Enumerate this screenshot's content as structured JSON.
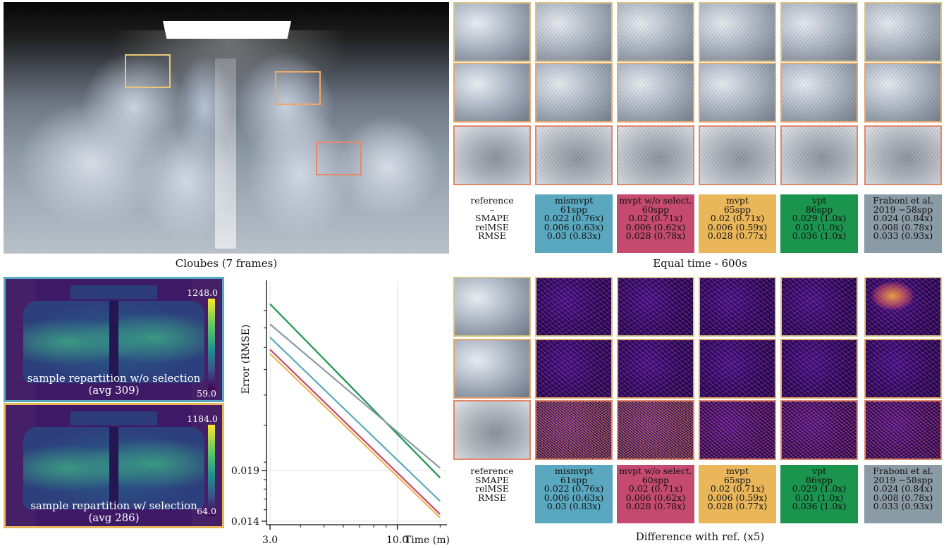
{
  "figure": {
    "hero_caption": "Cloubes (7 frames)",
    "equal_time_caption": "Equal time - 600s",
    "diff_caption": "Difference with ref. (x5)"
  },
  "reference_labels": [
    "reference",
    "–",
    "SMAPE",
    "relMSE",
    "RMSE"
  ],
  "diff_reference_labels": [
    "reference",
    "SMAPE",
    "relMSE",
    "RMSE"
  ],
  "methods": [
    {
      "name": "mismvpt",
      "spp": "61spp",
      "smape": "0.022 (0.76x)",
      "relmse": "0.006 (0.63x)",
      "rmse": "0.03 (0.83x)",
      "color": "#5aa8bf"
    },
    {
      "name": "mvpt w/o select.",
      "spp": "60spp",
      "smape": "0.02 (0.71x)",
      "relmse": "0.006 (0.62x)",
      "rmse": "0.028 (0.78x)",
      "color": "#c44a6f"
    },
    {
      "name": "mvpt",
      "spp": "65spp",
      "smape": "0.02 (0.71x)",
      "relmse": "0.006 (0.59x)",
      "rmse": "0.028 (0.77x)",
      "color": "#e9b75a"
    },
    {
      "name": "vpt",
      "spp": "86spp",
      "smape": "0.029 (1.0x)",
      "relmse": "0.01 (1.0x)",
      "rmse": "0.036 (1.0x)",
      "color": "#1b944e"
    },
    {
      "name": "Fraboni et al.",
      "spp": "2019 −58spp",
      "smape": "0.024 (0.84x)",
      "relmse": "0.008 (0.78x)",
      "rmse": "0.033 (0.93x)",
      "color": "#8a9ba6"
    }
  ],
  "heatmaps": [
    {
      "max": "1248.0",
      "min": "59.0",
      "label": "sample repartition w/o selection",
      "avg": "(avg 309)",
      "border": "#5aa8bf"
    },
    {
      "max": "1184.0",
      "min": "64.0",
      "label": "sample repartition w/ selection",
      "avg": "(avg 286)",
      "border": "#e9b75a"
    }
  ],
  "chart_data": {
    "type": "line",
    "ylabel": "Error (RMSE)",
    "xlabel": "Time (m)",
    "xscale": "log",
    "yscale": "log",
    "xlim": [
      2.9,
      16
    ],
    "ylim": [
      0.0137,
      0.06
    ],
    "x_ticks": [
      {
        "value": 3.0,
        "label": "3.0"
      },
      {
        "value": 10.0,
        "label": "10.0"
      }
    ],
    "y_ticks": [
      {
        "value": 0.014,
        "label": "0.014"
      },
      {
        "value": 0.019,
        "label": "0.019"
      }
    ],
    "grid": true,
    "series": [
      {
        "color": "#1b944e",
        "x": [
          3.0,
          15.0
        ],
        "y": [
          0.052,
          0.0182
        ]
      },
      {
        "color": "#8a9ba6",
        "x": [
          3.0,
          15.0
        ],
        "y": [
          0.046,
          0.0193
        ]
      },
      {
        "color": "#5aa8bf",
        "x": [
          3.0,
          15.0
        ],
        "y": [
          0.0425,
          0.0158
        ]
      },
      {
        "color": "#c44a6f",
        "x": [
          3.0,
          15.0
        ],
        "y": [
          0.0395,
          0.0146
        ]
      },
      {
        "color": "#e9b75a",
        "x": [
          3.0,
          15.0
        ],
        "y": [
          0.0385,
          0.0143
        ]
      }
    ]
  }
}
